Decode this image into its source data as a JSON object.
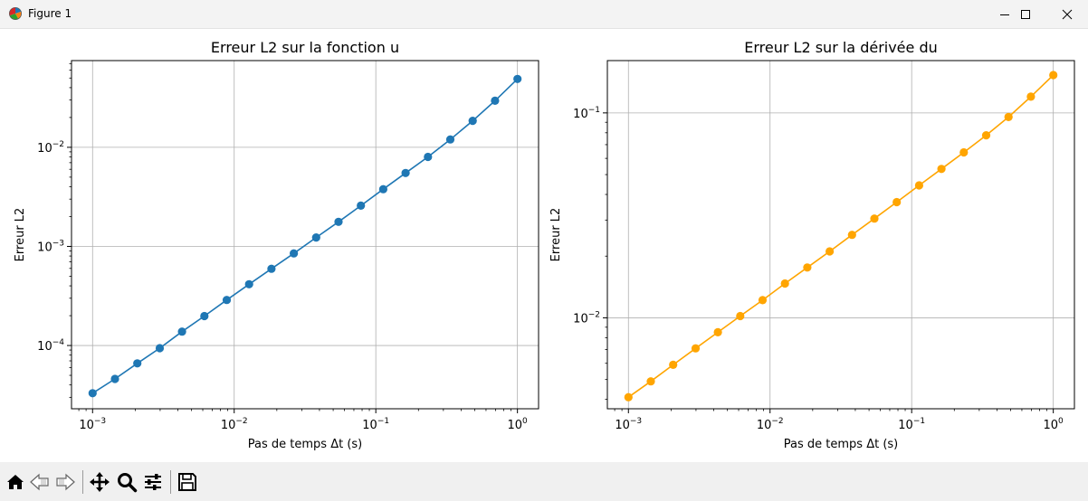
{
  "window": {
    "title": "Figure 1",
    "icons": {
      "app": "matplotlib-icon",
      "minimize": "minimize-icon",
      "maximize": "maximize-icon",
      "close": "close-icon"
    }
  },
  "toolbar": {
    "buttons": [
      {
        "name": "home-button",
        "icon": "home-icon"
      },
      {
        "name": "back-button",
        "icon": "arrow-left-icon"
      },
      {
        "name": "forward-button",
        "icon": "arrow-right-icon"
      },
      {
        "name": "pan-button",
        "icon": "move-arrows-icon"
      },
      {
        "name": "zoom-button",
        "icon": "magnifier-icon"
      },
      {
        "name": "configure-subplots-button",
        "icon": "sliders-icon"
      },
      {
        "name": "save-button",
        "icon": "floppy-disk-icon"
      }
    ]
  },
  "chart_data": [
    {
      "type": "line",
      "title": "Erreur L2 sur la fonction u",
      "xlabel": "Pas de temps Δt (s)",
      "ylabel": "Erreur L2",
      "xscale": "log",
      "yscale": "log",
      "xlim": [
        0.00071,
        1.41
      ],
      "ylim": [
        2.3e-05,
        0.075
      ],
      "xticks": [
        0.001,
        0.01,
        0.1,
        1
      ],
      "xtick_labels": [
        {
          "base": "10",
          "exp": "−3"
        },
        {
          "base": "10",
          "exp": "−2"
        },
        {
          "base": "10",
          "exp": "−1"
        },
        {
          "base": "10",
          "exp": "0"
        }
      ],
      "yticks": [
        0.0001,
        0.001,
        0.01
      ],
      "ytick_labels": [
        {
          "base": "10",
          "exp": "−4"
        },
        {
          "base": "10",
          "exp": "−3"
        },
        {
          "base": "10",
          "exp": "−2"
        }
      ],
      "grid": true,
      "color": "#1f77b4",
      "marker": "circle",
      "series": [
        {
          "x": [
            0.001,
            0.00144,
            0.00207,
            0.00298,
            0.00428,
            0.00616,
            0.00886,
            0.01274,
            0.01833,
            0.02637,
            0.03793,
            0.05456,
            0.07848,
            0.11288,
            0.16238,
            0.23357,
            0.33598,
            0.48329,
            0.69519,
            1.0
          ],
          "values": [
            3.3e-05,
            4.6e-05,
            6.6e-05,
            9.4e-05,
            0.000138,
            0.000198,
            0.000288,
            0.000415,
            0.000595,
            0.00085,
            0.00123,
            0.00177,
            0.00258,
            0.00378,
            0.0055,
            0.008,
            0.012,
            0.0185,
            0.0295,
            0.049
          ]
        }
      ]
    },
    {
      "type": "line",
      "title": "Erreur L2 sur la dérivée du",
      "xlabel": "Pas de temps Δt (s)",
      "ylabel": "Erreur L2",
      "xscale": "log",
      "yscale": "log",
      "xlim": [
        0.00071,
        1.41
      ],
      "ylim": [
        0.0036,
        0.18
      ],
      "xticks": [
        0.001,
        0.01,
        0.1,
        1
      ],
      "xtick_labels": [
        {
          "base": "10",
          "exp": "−3"
        },
        {
          "base": "10",
          "exp": "−2"
        },
        {
          "base": "10",
          "exp": "−1"
        },
        {
          "base": "10",
          "exp": "0"
        }
      ],
      "yticks": [
        0.01,
        0.1
      ],
      "ytick_labels": [
        {
          "base": "10",
          "exp": "−2"
        },
        {
          "base": "10",
          "exp": "−1"
        }
      ],
      "grid": true,
      "color": "#ffa500",
      "marker": "circle",
      "series": [
        {
          "x": [
            0.001,
            0.00144,
            0.00207,
            0.00298,
            0.00428,
            0.00616,
            0.00886,
            0.01274,
            0.01833,
            0.02637,
            0.03793,
            0.05456,
            0.07848,
            0.11288,
            0.16238,
            0.23357,
            0.33598,
            0.48329,
            0.69519,
            1.0
          ],
          "values": [
            0.0041,
            0.0049,
            0.0059,
            0.0071,
            0.0085,
            0.0102,
            0.0122,
            0.0147,
            0.0176,
            0.0211,
            0.0254,
            0.0305,
            0.0367,
            0.0443,
            0.0533,
            0.0642,
            0.0778,
            0.0955,
            0.12,
            0.153
          ]
        }
      ]
    }
  ]
}
